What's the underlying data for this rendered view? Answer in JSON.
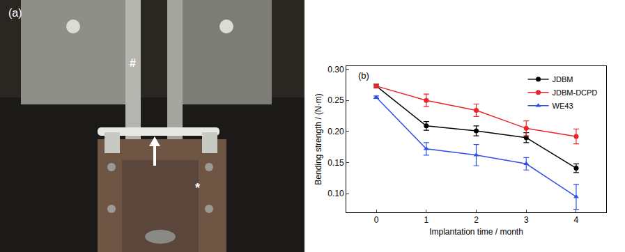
{
  "photo": {
    "label": "(a)",
    "marks": [
      "#",
      "*"
    ]
  },
  "chart_data": {
    "type": "line",
    "title": "(b)",
    "x_label": "Implantation time / month",
    "y_label": "Bending strength / (N·m)",
    "x": [
      0,
      1,
      2,
      3,
      4
    ],
    "xlim": [
      -0.6,
      4.6
    ],
    "xticks": [
      0,
      1,
      2,
      3,
      4
    ],
    "ylim": [
      0.07,
      0.305
    ],
    "yticks": [
      {
        "value": 0.1,
        "label": "0.10"
      },
      {
        "value": 0.15,
        "label": "0.15"
      },
      {
        "value": 0.2,
        "label": "0.20"
      },
      {
        "value": 0.25,
        "label": "0.25"
      },
      {
        "value": 0.3,
        "label": "0.30"
      }
    ],
    "grid": false,
    "legend": "upper right",
    "series": [
      {
        "name": "JDBM",
        "color": "#000000",
        "marker": "circle",
        "line_style": "solid",
        "values": [
          0.273,
          0.209,
          0.201,
          0.19,
          0.141
        ],
        "errors": [
          0.003,
          0.007,
          0.008,
          0.008,
          0.007
        ]
      },
      {
        "name": "JDBM-DCPD",
        "color": "#e8262a",
        "marker": "circle",
        "line_style": "solid",
        "values": [
          0.273,
          0.25,
          0.234,
          0.205,
          0.192
        ],
        "errors": [
          0.003,
          0.01,
          0.01,
          0.012,
          0.012
        ]
      },
      {
        "name": "WE43",
        "color": "#2e50e6",
        "marker": "triangle",
        "line_style": "solid",
        "values": [
          0.255,
          0.172,
          0.162,
          0.148,
          0.095
        ],
        "errors": [
          0.002,
          0.01,
          0.017,
          0.01,
          0.02
        ]
      }
    ]
  }
}
